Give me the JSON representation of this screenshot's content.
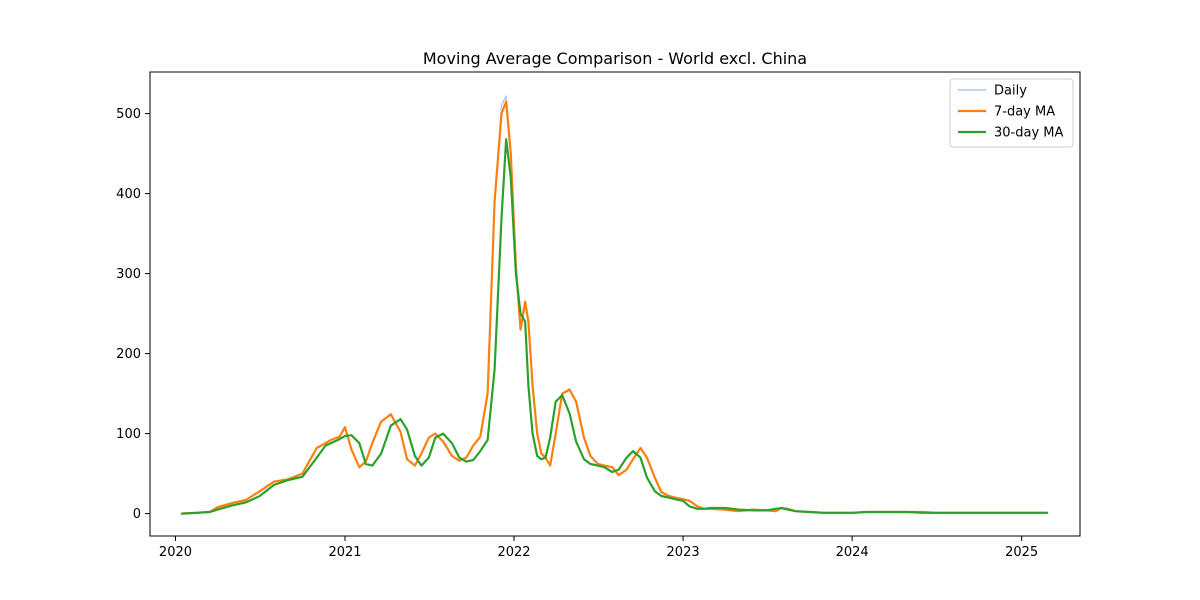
{
  "chart_data": {
    "type": "line",
    "title": "Moving Average Comparison - World excl. China",
    "xlabel": "",
    "ylabel": "",
    "x_ticks": [
      "2020",
      "2021",
      "2022",
      "2023",
      "2024",
      "2025"
    ],
    "y_ticks": [
      "0",
      "100",
      "200",
      "300",
      "400",
      "500"
    ],
    "xlim": [
      "2019-11-07",
      "2025-05-07"
    ],
    "ylim": [
      -28,
      552
    ],
    "grid": false,
    "legend_position": "top-right",
    "x": [
      "2020-01-15",
      "2020-02-15",
      "2020-03-15",
      "2020-04-01",
      "2020-05-01",
      "2020-06-01",
      "2020-07-01",
      "2020-08-01",
      "2020-09-01",
      "2020-10-01",
      "2020-11-01",
      "2020-11-20",
      "2020-12-01",
      "2020-12-20",
      "2021-01-01",
      "2021-01-15",
      "2021-02-01",
      "2021-02-15",
      "2021-03-01",
      "2021-03-20",
      "2021-04-10",
      "2021-05-01",
      "2021-05-15",
      "2021-06-01",
      "2021-06-15",
      "2021-07-01",
      "2021-07-15",
      "2021-08-01",
      "2021-08-20",
      "2021-09-05",
      "2021-09-20",
      "2021-10-05",
      "2021-10-20",
      "2021-11-05",
      "2021-11-20",
      "2021-12-05",
      "2021-12-15",
      "2021-12-25",
      "2022-01-05",
      "2022-01-15",
      "2022-01-25",
      "2022-02-01",
      "2022-02-10",
      "2022-02-20",
      "2022-03-01",
      "2022-03-10",
      "2022-03-20",
      "2022-04-01",
      "2022-04-15",
      "2022-05-01",
      "2022-05-15",
      "2022-06-01",
      "2022-06-15",
      "2022-07-01",
      "2022-07-15",
      "2022-08-01",
      "2022-08-15",
      "2022-09-01",
      "2022-09-15",
      "2022-10-01",
      "2022-10-15",
      "2022-11-01",
      "2022-11-15",
      "2022-12-01",
      "2022-12-15",
      "2023-01-01",
      "2023-01-15",
      "2023-02-01",
      "2023-02-15",
      "2023-03-01",
      "2023-04-01",
      "2023-05-01",
      "2023-06-01",
      "2023-07-01",
      "2023-07-20",
      "2023-08-01",
      "2023-08-15",
      "2023-09-01",
      "2023-10-01",
      "2023-11-01",
      "2023-12-01",
      "2024-01-01",
      "2024-02-01",
      "2024-03-01",
      "2024-04-01",
      "2024-05-01",
      "2024-06-01",
      "2024-07-01",
      "2024-08-01",
      "2024-09-01",
      "2024-10-01",
      "2024-11-01",
      "2024-12-01",
      "2025-01-01",
      "2025-02-01",
      "2025-02-25"
    ],
    "series": [
      {
        "name": "Daily",
        "color": "#aec7e8",
        "values": [
          0,
          1,
          2,
          8,
          13,
          17,
          28,
          40,
          43,
          50,
          82,
          88,
          92,
          96,
          108,
          80,
          58,
          65,
          88,
          115,
          125,
          102,
          68,
          60,
          75,
          95,
          100,
          90,
          72,
          66,
          70,
          85,
          96,
          150,
          390,
          510,
          522,
          450,
          310,
          230,
          260,
          240,
          160,
          100,
          75,
          70,
          60,
          100,
          150,
          156,
          140,
          95,
          72,
          62,
          60,
          58,
          48,
          55,
          68,
          82,
          70,
          45,
          27,
          22,
          20,
          18,
          16,
          9,
          6,
          6,
          5,
          3,
          5,
          4,
          3,
          7,
          6,
          3,
          2,
          1,
          1,
          1,
          2,
          2,
          2,
          2,
          2,
          1,
          1,
          1,
          1,
          1,
          1,
          1,
          1,
          1
        ]
      },
      {
        "name": "7-day MA",
        "color": "#ff7f0e",
        "values": [
          0,
          1,
          2,
          8,
          13,
          17,
          28,
          40,
          43,
          50,
          82,
          88,
          92,
          96,
          108,
          80,
          58,
          65,
          88,
          115,
          124,
          102,
          68,
          60,
          75,
          95,
          100,
          90,
          72,
          66,
          70,
          85,
          96,
          150,
          390,
          500,
          515,
          450,
          310,
          230,
          265,
          240,
          160,
          100,
          75,
          70,
          60,
          100,
          150,
          155,
          140,
          95,
          72,
          62,
          60,
          58,
          48,
          55,
          68,
          82,
          70,
          45,
          27,
          22,
          20,
          18,
          16,
          9,
          6,
          6,
          5,
          3,
          5,
          4,
          3,
          7,
          6,
          3,
          2,
          1,
          1,
          1,
          2,
          2,
          2,
          2,
          2,
          1,
          1,
          1,
          1,
          1,
          1,
          1,
          1,
          1
        ]
      },
      {
        "name": "30-day MA",
        "color": "#2ca02c",
        "values": [
          0,
          1,
          2,
          5,
          10,
          14,
          22,
          36,
          42,
          46,
          70,
          85,
          88,
          93,
          97,
          98,
          88,
          62,
          60,
          75,
          110,
          118,
          105,
          72,
          60,
          70,
          95,
          100,
          88,
          70,
          65,
          67,
          78,
          92,
          180,
          370,
          468,
          420,
          300,
          250,
          240,
          160,
          100,
          72,
          68,
          70,
          95,
          140,
          148,
          125,
          90,
          68,
          62,
          60,
          58,
          52,
          55,
          70,
          78,
          70,
          45,
          28,
          22,
          20,
          18,
          16,
          9,
          6,
          6,
          7,
          7,
          5,
          4,
          4,
          6,
          7,
          5,
          3,
          2,
          1,
          1,
          1,
          2,
          2,
          2,
          2,
          1,
          1,
          1,
          1,
          1,
          1,
          1,
          1,
          1,
          1
        ]
      }
    ]
  }
}
